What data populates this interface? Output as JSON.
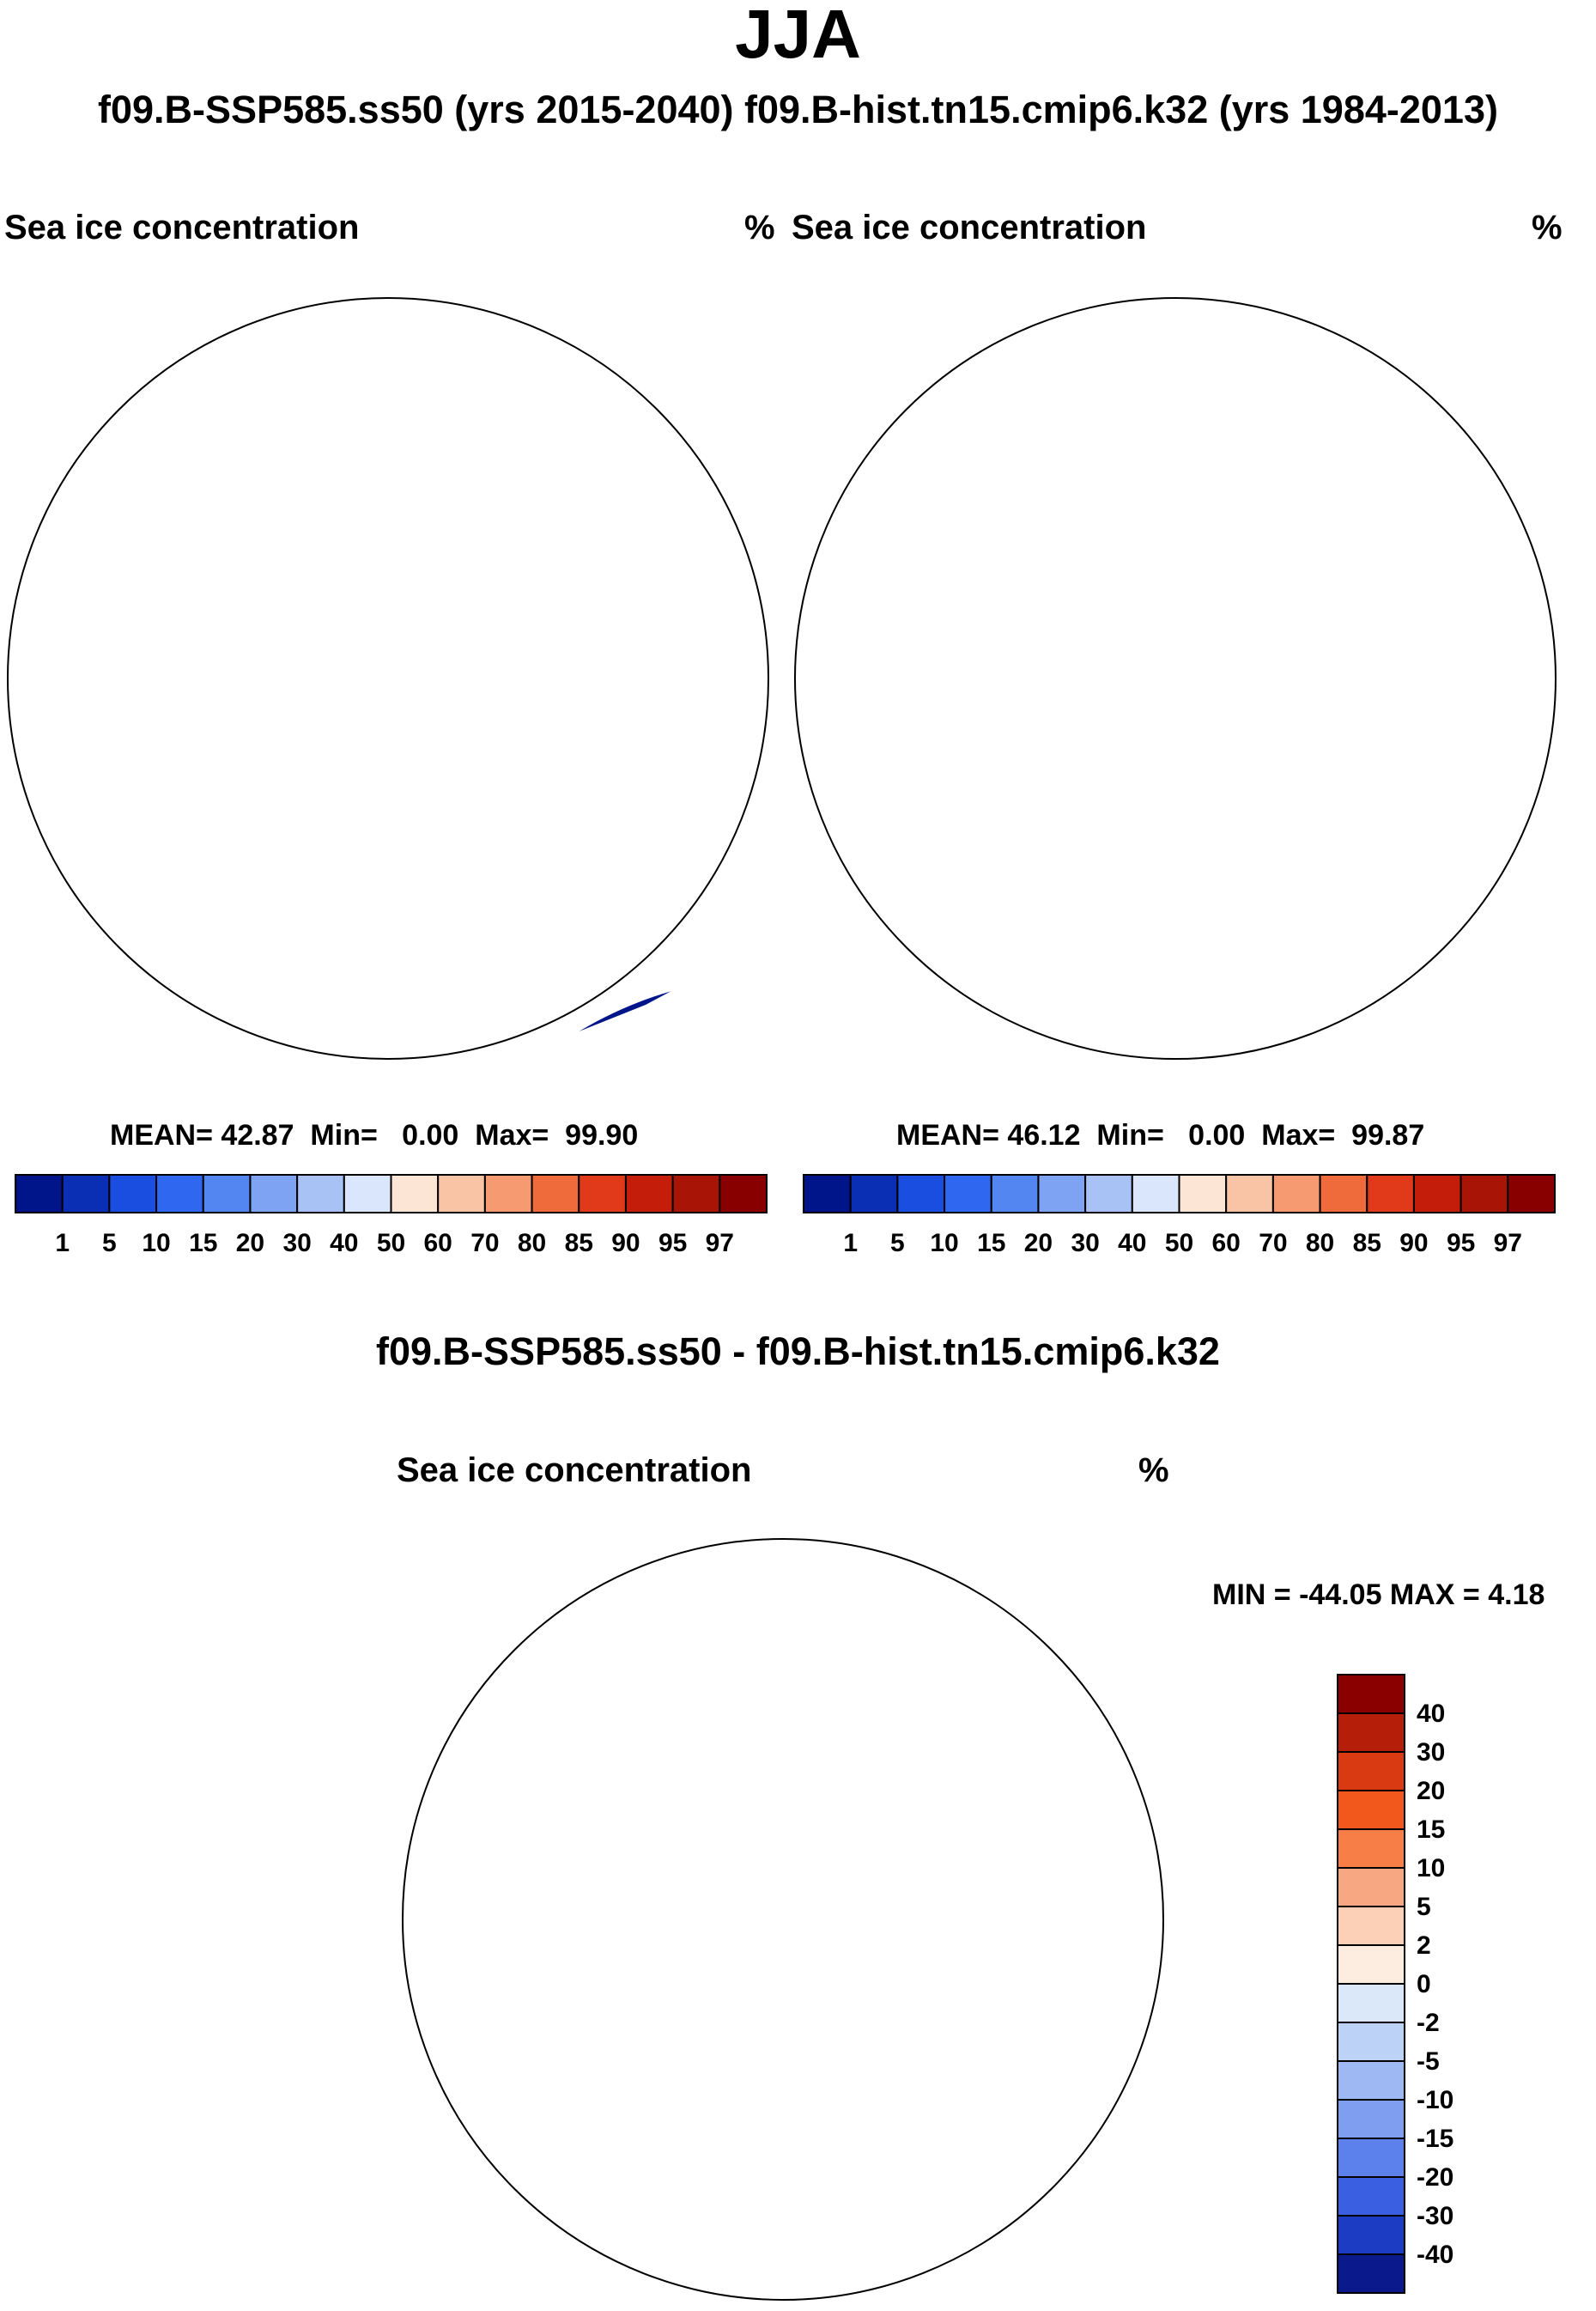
{
  "title": "JJA",
  "subtitle": "f09.B-SSP585.ss50 (yrs 2015-2040)  f09.B-hist.tn15.cmip6.k32 (yrs 1984-2013)",
  "panels": [
    {
      "name": "ssp585",
      "variable": "Sea ice concentration",
      "units": "%",
      "stats": {
        "mean": "42.87",
        "min": "0.00",
        "max": "99.90"
      },
      "stats_labels": {
        "mean": "MEAN=",
        "min": "Min=",
        "max": "Max="
      }
    },
    {
      "name": "hist",
      "variable": "Sea ice concentration",
      "units": "%",
      "stats": {
        "mean": "46.12",
        "min": "0.00",
        "max": "99.87"
      },
      "stats_labels": {
        "mean": "MEAN=",
        "min": "Min=",
        "max": "Max="
      }
    }
  ],
  "colorbar": {
    "levels": [
      "1",
      "5",
      "10",
      "15",
      "20",
      "30",
      "40",
      "50",
      "60",
      "70",
      "80",
      "85",
      "90",
      "95",
      "97"
    ],
    "colors": [
      "#00158a",
      "#0a2fb5",
      "#1a4ee0",
      "#2f67f0",
      "#5486f2",
      "#7ea3f2",
      "#a8c2f5",
      "#d9e6fb",
      "#fde5d5",
      "#f9c4a6",
      "#f59a71",
      "#f06b3b",
      "#e03a1a",
      "#c41e0b",
      "#a81406",
      "#880000"
    ]
  },
  "difference": {
    "title": "f09.B-SSP585.ss50 - f09.B-hist.tn15.cmip6.k32",
    "variable": "Sea ice concentration",
    "units": "%",
    "minmax": "MIN = -44.05 MAX =   4.18",
    "colorbar": {
      "levels": [
        "40",
        "30",
        "20",
        "15",
        "10",
        "5",
        "2",
        "0",
        "-2",
        "-5",
        "-10",
        "-15",
        "-20",
        "-30",
        "-40"
      ],
      "colors": [
        "#8a0000",
        "#b51e08",
        "#d93a12",
        "#f2571c",
        "#f77e47",
        "#f7a883",
        "#fbd0b6",
        "#fdece0",
        "#dbe8fa",
        "#bcd3f7",
        "#9db8f2",
        "#7f9ef0",
        "#5c80ec",
        "#3a5fe0",
        "#1d3cc4",
        "#0a1a8c"
      ]
    }
  }
}
